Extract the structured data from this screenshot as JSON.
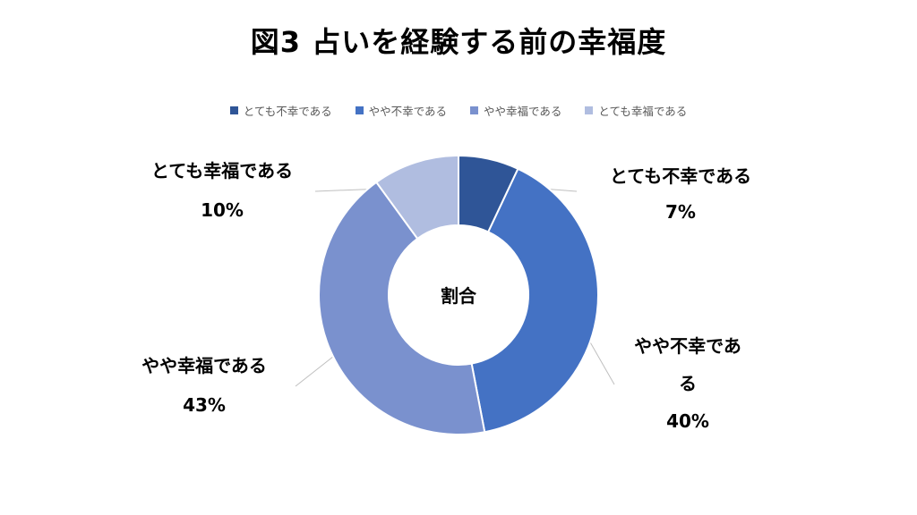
{
  "chart_data": {
    "type": "pie",
    "title": "図3 占いを経験する前の幸福度",
    "center_label": "割合",
    "legend_position": "top",
    "categories": [
      "とても不幸である",
      "やや不幸である",
      "やや幸福である",
      "とても幸福である"
    ],
    "values": [
      7,
      40,
      43,
      10
    ],
    "value_labels": [
      "7%",
      "40%",
      "43%",
      "10%"
    ],
    "colors": [
      "#2F5597",
      "#4472C4",
      "#7A91CE",
      "#B0BDE0"
    ]
  }
}
